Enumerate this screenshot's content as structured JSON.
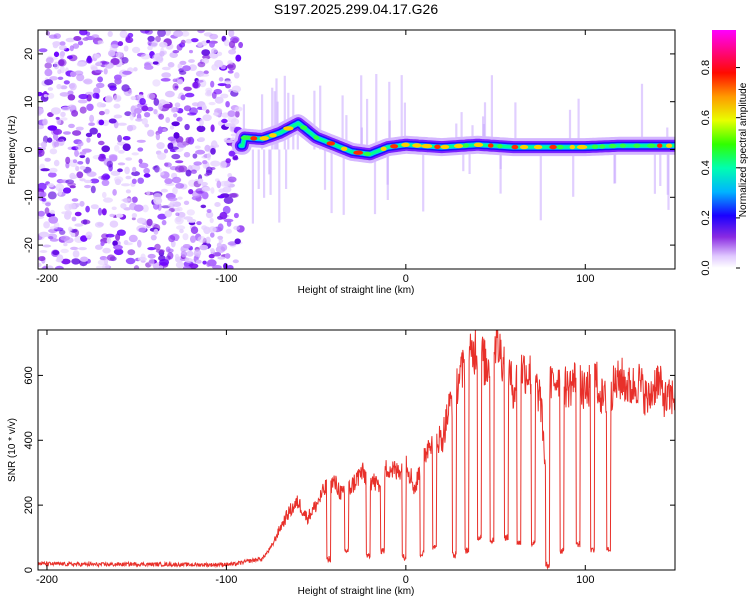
{
  "title": "S197.2025.299.04.17.G26",
  "chart_data": [
    {
      "type": "heatmap",
      "name": "spectrogram",
      "xlabel": "Height of straight line (km)",
      "ylabel": "Frequency (Hz)",
      "xlim": [
        -205,
        150
      ],
      "ylim": [
        -25,
        25
      ],
      "xticks": [
        -200,
        -100,
        0,
        100
      ],
      "yticks": [
        -20,
        -10,
        0,
        10,
        20
      ],
      "noise_region": [
        -205,
        -92
      ],
      "signal_start": -92,
      "ridge_frequency_hz": [
        [
          -90,
          2.5
        ],
        [
          -80,
          2.2
        ],
        [
          -70,
          3.5
        ],
        [
          -60,
          5.5
        ],
        [
          -55,
          4.0
        ],
        [
          -50,
          2.5
        ],
        [
          -40,
          1.0
        ],
        [
          -30,
          -0.5
        ],
        [
          -20,
          -1.0
        ],
        [
          -10,
          0.5
        ],
        [
          0,
          1.0
        ],
        [
          20,
          0.5
        ],
        [
          40,
          1.0
        ],
        [
          60,
          0.5
        ],
        [
          80,
          0.5
        ],
        [
          100,
          0.5
        ],
        [
          120,
          0.8
        ],
        [
          150,
          0.8
        ]
      ],
      "colorbar": {
        "label": "Normalized spectral amplitude",
        "range": [
          0.0,
          0.95
        ],
        "ticks": [
          0.0,
          0.2,
          0.4,
          0.6,
          0.8
        ],
        "tick_labels": [
          "0.0",
          "0.2",
          "0.4",
          "0.6",
          "0.8"
        ],
        "colors": [
          "#ffffff",
          "#b060ff",
          "#2000ff",
          "#00c8ff",
          "#00ff60",
          "#e8ff00",
          "#ff9000",
          "#ff0000",
          "#ff00ff"
        ]
      }
    },
    {
      "type": "line",
      "name": "snr",
      "xlabel": "Height of straight line (km)",
      "ylabel": "SNR (10 * v/v)",
      "xlim": [
        -205,
        150
      ],
      "ylim": [
        0,
        740
      ],
      "xticks": [
        -200,
        -100,
        0,
        100
      ],
      "yticks": [
        0,
        200,
        400,
        600
      ],
      "color": "#e8302a",
      "series": [
        {
          "name": "SNR",
          "x": [
            -205,
            -190,
            -170,
            -150,
            -130,
            -110,
            -95,
            -90,
            -85,
            -80,
            -75,
            -70,
            -65,
            -60,
            -55,
            -50,
            -45,
            -40,
            -35,
            -30,
            -25,
            -20,
            -15,
            -10,
            -5,
            0,
            5,
            10,
            15,
            20,
            25,
            30,
            35,
            40,
            45,
            50,
            55,
            60,
            65,
            70,
            75,
            78,
            80,
            85,
            90,
            95,
            100,
            105,
            110,
            115,
            120,
            125,
            130,
            135,
            140,
            145,
            150
          ],
          "y": [
            20,
            18,
            17,
            18,
            17,
            16,
            18,
            25,
            30,
            35,
            70,
            130,
            180,
            210,
            160,
            200,
            250,
            270,
            230,
            260,
            300,
            280,
            260,
            320,
            300,
            340,
            250,
            350,
            420,
            400,
            520,
            600,
            640,
            700,
            620,
            710,
            640,
            560,
            620,
            600,
            530,
            300,
            560,
            600,
            560,
            590,
            540,
            600,
            520,
            560,
            590,
            560,
            580,
            520,
            590,
            520,
            540
          ]
        }
      ]
    }
  ]
}
